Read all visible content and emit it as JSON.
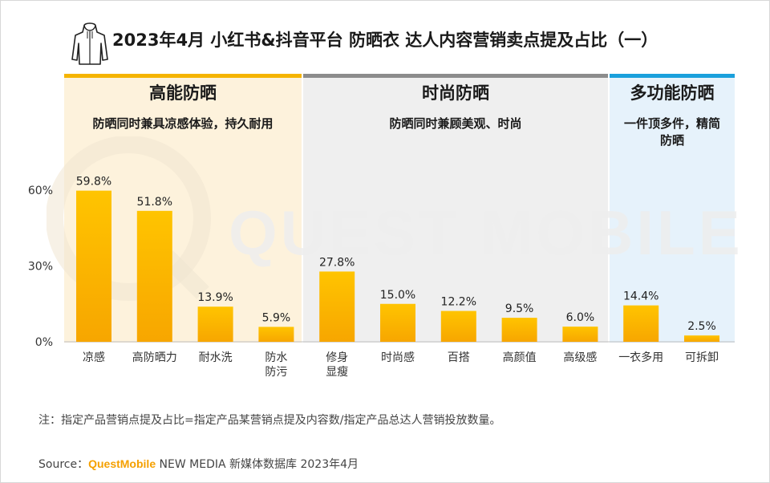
{
  "title": "2023年4月 小红书&抖音平台 防晒衣 达人内容营销卖点提及占比（一）",
  "title_icon": "hoodie-icon",
  "watermark": "QUEST MOBILE",
  "groups": [
    {
      "name": "高能防晒",
      "desc": "防晒同时兼具凉感体验，持久耐用",
      "color": "#f5b400",
      "bg": "#fdf2dc"
    },
    {
      "name": "时尚防晒",
      "desc": "防晒同时兼顾美观、时尚",
      "color": "#8c8c8c",
      "bg": "#efefef"
    },
    {
      "name": "多功能防晒",
      "desc": "一件顶多件，精简防晒",
      "color": "#1aa0dc",
      "bg": "#e6f2fb"
    }
  ],
  "chart_data": {
    "type": "bar",
    "categories": [
      "凉感",
      "高防晒力",
      "耐水洗",
      "防水防污",
      "修身显瘦",
      "时尚感",
      "百搭",
      "高颜值",
      "高级感",
      "一衣多用",
      "可拆卸"
    ],
    "values": [
      59.8,
      51.8,
      13.9,
      5.9,
      27.8,
      15.0,
      12.2,
      9.5,
      6.0,
      14.4,
      2.5
    ],
    "value_labels": [
      "59.8%",
      "51.8%",
      "13.9%",
      "5.9%",
      "27.8%",
      "15.0%",
      "12.2%",
      "9.5%",
      "6.0%",
      "14.4%",
      "2.5%"
    ],
    "groups": [
      0,
      0,
      0,
      0,
      1,
      1,
      1,
      1,
      1,
      2,
      2
    ],
    "ylim": [
      0,
      60
    ],
    "yticks": [
      "0%",
      "30%",
      "60%"
    ],
    "ytick_values": [
      0,
      30,
      60
    ],
    "bar_color_top": "#ffc400",
    "bar_color_bottom": "#f7a600",
    "grid": false,
    "legend": "none"
  },
  "note": "注：指定产品营销点提及占比=指定产品某营销点提及内容数/指定产品总达人营销投放数量。",
  "source": {
    "prefix": "Source：",
    "brand": "QuestMobile",
    "suffix": " NEW MEDIA 新媒体数据库 2023年4月"
  }
}
